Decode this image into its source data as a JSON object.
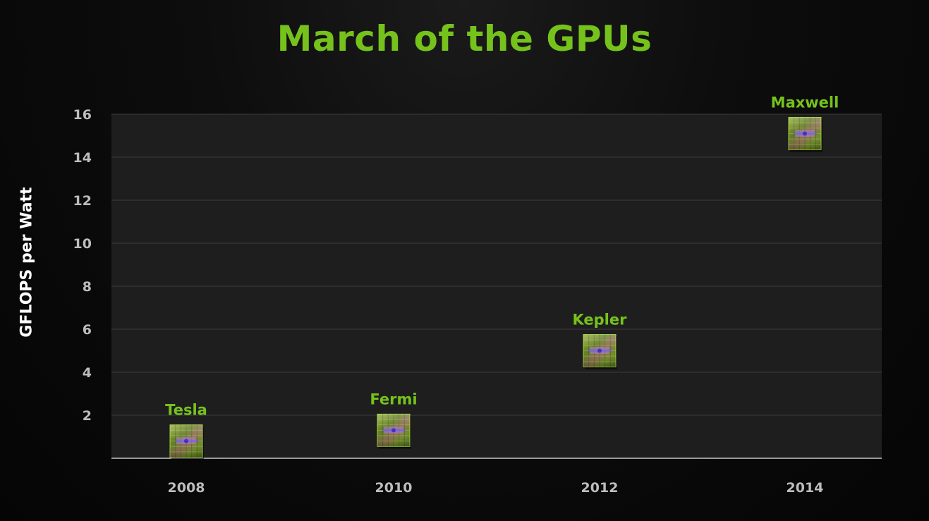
{
  "title": "March of the GPUs",
  "chart_data": {
    "type": "scatter",
    "title": "March of the GPUs",
    "xlabel": "",
    "ylabel": "GFLOPS per Watt",
    "categories": [
      "2008",
      "2010",
      "2012",
      "2014"
    ],
    "yticks": [
      "2",
      "4",
      "6",
      "8",
      "10",
      "12",
      "14",
      "16"
    ],
    "ylim": [
      0,
      16
    ],
    "grid": true,
    "series": [
      {
        "points": [
          {
            "x": "2008",
            "y": 0.8,
            "label": "Tesla"
          },
          {
            "x": "2010",
            "y": 1.3,
            "label": "Fermi"
          },
          {
            "x": "2012",
            "y": 5.0,
            "label": "Kepler"
          },
          {
            "x": "2014",
            "y": 15.1,
            "label": "Maxwell"
          }
        ]
      }
    ],
    "colors": {
      "title": "#76c21c",
      "label": "#76c21c",
      "tick": "#bdbdbd",
      "plot_bg": "#1e1e1e",
      "grid": "#3c3c3c",
      "axis": "#9a9a9a",
      "ylabel": "#ffffff"
    },
    "marker_icon": "gpu-chip-die-icon"
  }
}
